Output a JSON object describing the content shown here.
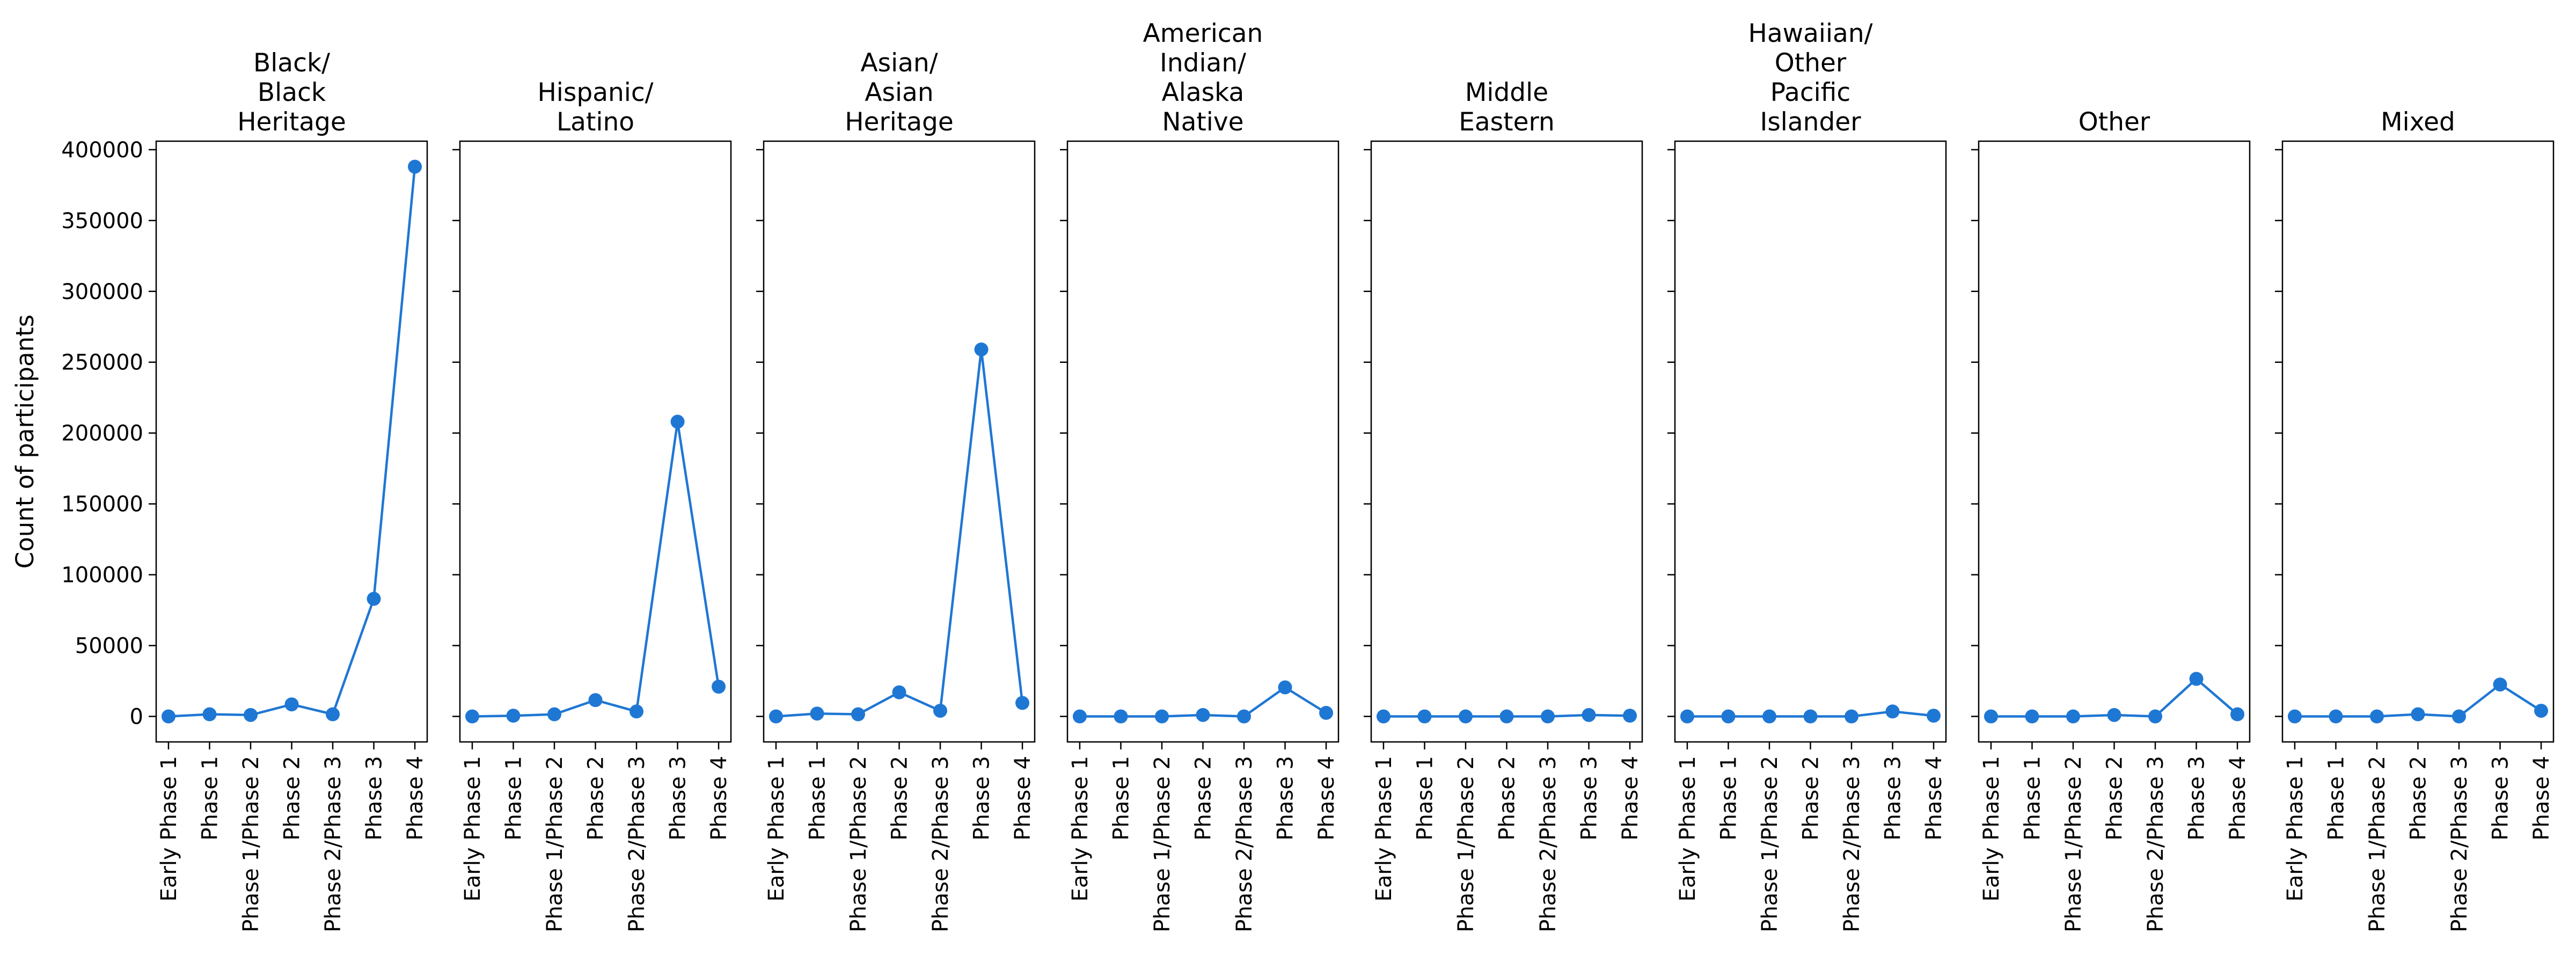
{
  "chart_data": {
    "type": "line",
    "ylabel": "Count of participants",
    "ylim": [
      -18000,
      406000
    ],
    "yticks": [
      0,
      50000,
      100000,
      150000,
      200000,
      250000,
      300000,
      350000,
      400000
    ],
    "sharey": true,
    "grid": false,
    "color": "#1f77d4",
    "categories": [
      "Early Phase 1",
      "Phase 1",
      "Phase 1/Phase 2",
      "Phase 2",
      "Phase 2/Phase 3",
      "Phase 3",
      "Phase 4"
    ],
    "panels": [
      {
        "title": [
          "Black/",
          "Black",
          "Heritage"
        ],
        "values": [
          0,
          1500,
          1000,
          8500,
          1500,
          83000,
          388000
        ]
      },
      {
        "title": [
          "Hispanic/",
          "Latino"
        ],
        "values": [
          0,
          500,
          1500,
          11500,
          3500,
          208000,
          21000
        ]
      },
      {
        "title": [
          "Asian/",
          "Asian",
          "Heritage"
        ],
        "values": [
          0,
          2000,
          1500,
          17000,
          4000,
          259000,
          9500
        ]
      },
      {
        "title": [
          "American",
          "Indian/",
          "Alaska",
          "Native"
        ],
        "values": [
          0,
          0,
          0,
          1000,
          0,
          20500,
          2500
        ]
      },
      {
        "title": [
          "Middle",
          "Eastern"
        ],
        "values": [
          0,
          0,
          0,
          0,
          0,
          1000,
          500
        ]
      },
      {
        "title": [
          "Hawaiian/",
          "Other",
          "Pacific",
          "Islander"
        ],
        "values": [
          0,
          0,
          0,
          0,
          0,
          3500,
          500
        ]
      },
      {
        "title": [
          "Other"
        ],
        "values": [
          0,
          0,
          0,
          1000,
          0,
          26500,
          1500
        ]
      },
      {
        "title": [
          "Mixed"
        ],
        "values": [
          0,
          0,
          0,
          1500,
          0,
          22500,
          4000
        ]
      }
    ]
  }
}
